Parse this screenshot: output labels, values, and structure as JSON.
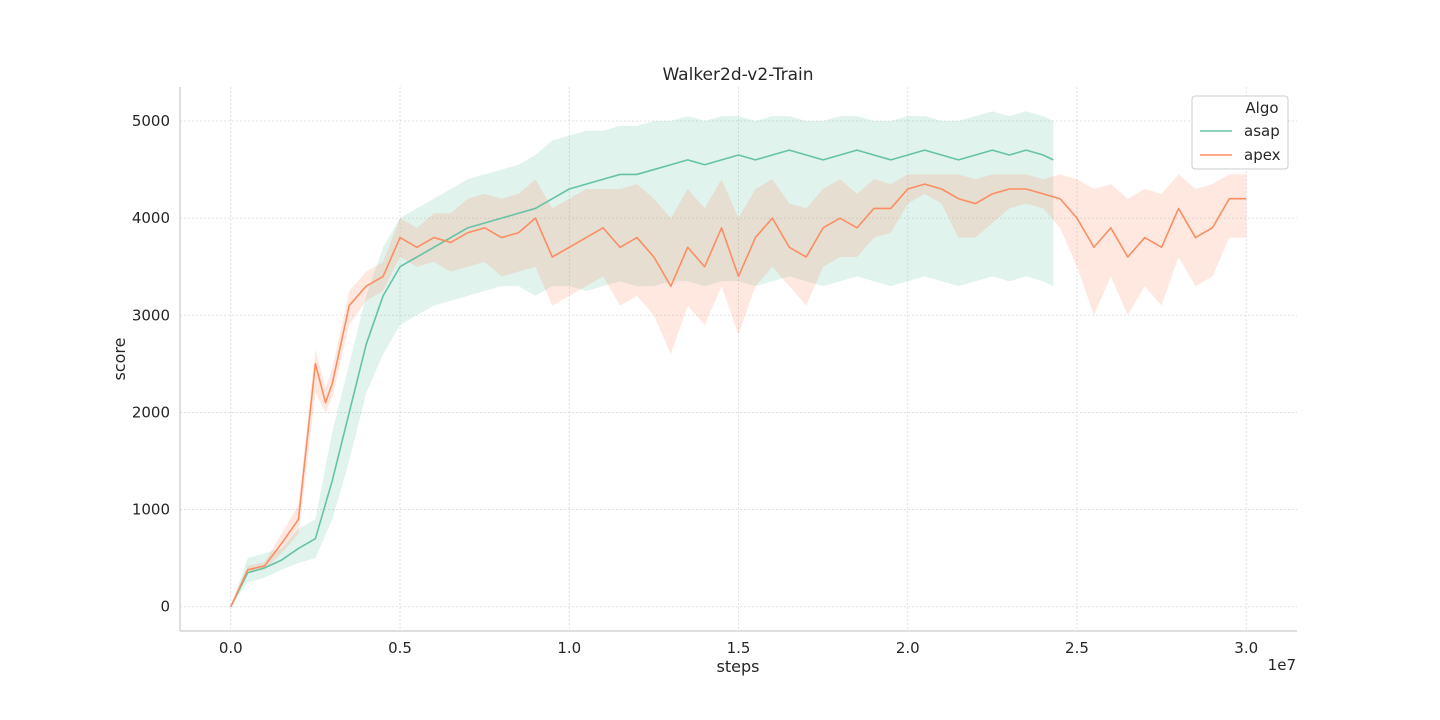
{
  "chart_data": {
    "type": "line",
    "title": "Walker2d-v2-Train",
    "xlabel": "steps",
    "ylabel": "score",
    "x_offset_label": "1e7",
    "xlim": [
      -0.15,
      3.15
    ],
    "ylim": [
      -250,
      5350
    ],
    "x_ticks": [
      0.0,
      0.5,
      1.0,
      1.5,
      2.0,
      2.5,
      3.0
    ],
    "x_tick_labels": [
      "0.0",
      "0.5",
      "1.0",
      "1.5",
      "2.0",
      "2.5",
      "3.0"
    ],
    "y_ticks": [
      0,
      1000,
      2000,
      3000,
      4000,
      5000
    ],
    "y_tick_labels": [
      "0",
      "1000",
      "2000",
      "3000",
      "4000",
      "5000"
    ],
    "grid": true,
    "legend": {
      "title": "Algo",
      "placement": "top-right"
    },
    "series": [
      {
        "name": "asap",
        "color": "#66c2a5",
        "x": [
          0.0,
          0.05,
          0.1,
          0.15,
          0.2,
          0.25,
          0.3,
          0.35,
          0.4,
          0.45,
          0.5,
          0.55,
          0.6,
          0.65,
          0.7,
          0.75,
          0.8,
          0.85,
          0.9,
          0.95,
          1.0,
          1.05,
          1.1,
          1.15,
          1.2,
          1.25,
          1.3,
          1.35,
          1.4,
          1.45,
          1.5,
          1.55,
          1.6,
          1.65,
          1.7,
          1.75,
          1.8,
          1.85,
          1.9,
          1.95,
          2.0,
          2.05,
          2.1,
          2.15,
          2.2,
          2.25,
          2.3,
          2.35,
          2.4,
          2.43
        ],
        "y": [
          0,
          350,
          400,
          480,
          600,
          700,
          1300,
          2000,
          2700,
          3200,
          3500,
          3600,
          3700,
          3800,
          3900,
          3950,
          4000,
          4050,
          4100,
          4200,
          4300,
          4350,
          4400,
          4450,
          4450,
          4500,
          4550,
          4600,
          4550,
          4600,
          4650,
          4600,
          4650,
          4700,
          4650,
          4600,
          4650,
          4700,
          4650,
          4600,
          4650,
          4700,
          4650,
          4600,
          4650,
          4700,
          4650,
          4700,
          4650,
          4600
        ],
        "lower": [
          0,
          250,
          300,
          380,
          450,
          500,
          900,
          1500,
          2200,
          2600,
          2900,
          3000,
          3100,
          3150,
          3200,
          3250,
          3300,
          3300,
          3200,
          3300,
          3300,
          3250,
          3300,
          3350,
          3300,
          3300,
          3350,
          3350,
          3300,
          3350,
          3350,
          3300,
          3350,
          3400,
          3350,
          3300,
          3350,
          3400,
          3350,
          3300,
          3350,
          3400,
          3350,
          3300,
          3350,
          3400,
          3350,
          3400,
          3350,
          3300
        ],
        "upper": [
          0,
          500,
          550,
          600,
          800,
          900,
          1800,
          2500,
          3200,
          3700,
          4000,
          4100,
          4200,
          4300,
          4400,
          4450,
          4500,
          4550,
          4650,
          4800,
          4850,
          4900,
          4900,
          4950,
          4950,
          5000,
          5000,
          5050,
          5000,
          5050,
          5050,
          5000,
          5050,
          5050,
          5000,
          5000,
          5050,
          5050,
          5000,
          5000,
          5050,
          5050,
          5000,
          5000,
          5050,
          5100,
          5050,
          5100,
          5050,
          5000
        ]
      },
      {
        "name": "apex",
        "color": "#fc8d62",
        "x": [
          0.0,
          0.05,
          0.1,
          0.15,
          0.2,
          0.25,
          0.28,
          0.3,
          0.35,
          0.4,
          0.45,
          0.5,
          0.55,
          0.6,
          0.65,
          0.7,
          0.75,
          0.8,
          0.85,
          0.9,
          0.95,
          1.0,
          1.05,
          1.1,
          1.15,
          1.2,
          1.25,
          1.3,
          1.35,
          1.4,
          1.45,
          1.5,
          1.55,
          1.6,
          1.65,
          1.7,
          1.75,
          1.8,
          1.85,
          1.9,
          1.95,
          2.0,
          2.05,
          2.1,
          2.15,
          2.2,
          2.25,
          2.3,
          2.35,
          2.4,
          2.45,
          2.5,
          2.55,
          2.6,
          2.65,
          2.7,
          2.75,
          2.8,
          2.85,
          2.9,
          2.95,
          3.0
        ],
        "y": [
          0,
          380,
          420,
          650,
          900,
          2500,
          2100,
          2300,
          3100,
          3300,
          3400,
          3800,
          3700,
          3800,
          3750,
          3850,
          3900,
          3800,
          3850,
          4000,
          3600,
          3700,
          3800,
          3900,
          3700,
          3800,
          3600,
          3300,
          3700,
          3500,
          3900,
          3400,
          3800,
          4000,
          3700,
          3600,
          3900,
          4000,
          3900,
          4100,
          4100,
          4300,
          4350,
          4300,
          4200,
          4150,
          4250,
          4300,
          4300,
          4250,
          4200,
          4000,
          3700,
          3900,
          3600,
          3800,
          3700,
          4100,
          3800,
          3900,
          4200,
          4200
        ],
        "lower": [
          0,
          350,
          380,
          550,
          750,
          2200,
          2000,
          2150,
          2900,
          3150,
          3250,
          3600,
          3500,
          3550,
          3450,
          3500,
          3550,
          3400,
          3450,
          3500,
          3100,
          3200,
          3300,
          3400,
          3100,
          3200,
          3000,
          2600,
          3100,
          2900,
          3300,
          2800,
          3300,
          3500,
          3300,
          3100,
          3500,
          3600,
          3600,
          3800,
          3850,
          4150,
          4250,
          4150,
          3800,
          3800,
          3950,
          4100,
          4150,
          4100,
          3900,
          3500,
          3000,
          3400,
          3000,
          3300,
          3100,
          3600,
          3300,
          3400,
          3800,
          3800
        ],
        "upper": [
          0,
          420,
          460,
          750,
          1050,
          2650,
          2250,
          2450,
          3250,
          3450,
          3550,
          4000,
          3900,
          4050,
          4050,
          4200,
          4250,
          4200,
          4250,
          4400,
          4100,
          4200,
          4300,
          4300,
          4300,
          4350,
          4200,
          4000,
          4300,
          4100,
          4400,
          4000,
          4300,
          4400,
          4150,
          4100,
          4300,
          4400,
          4250,
          4400,
          4350,
          4450,
          4450,
          4450,
          4450,
          4400,
          4450,
          4450,
          4450,
          4400,
          4450,
          4400,
          4300,
          4350,
          4200,
          4300,
          4250,
          4450,
          4300,
          4350,
          4450,
          4450
        ]
      }
    ]
  }
}
